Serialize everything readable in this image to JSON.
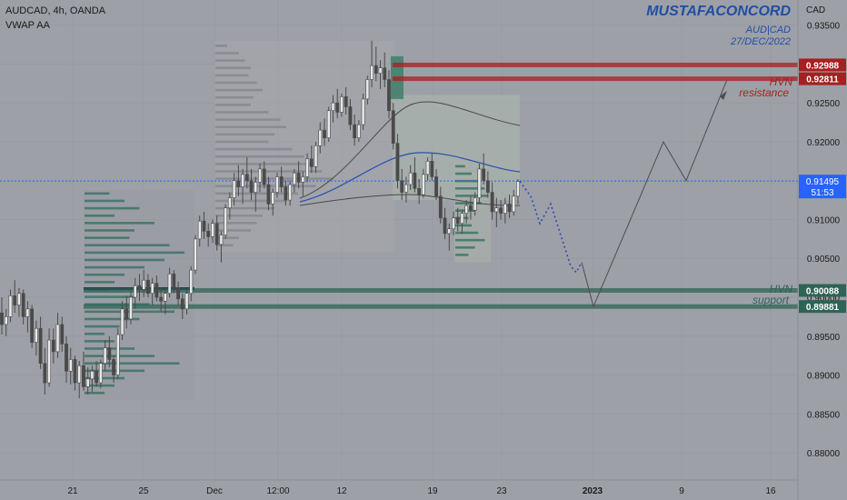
{
  "header": {
    "symbol": "AUDCAD, 4h, OANDA",
    "indicator": "VWAP AA",
    "watermark": "MUSTAFACONCORD",
    "note_pair": "AUD|CAD",
    "note_date": "27/DEC/2022",
    "currency": "CAD"
  },
  "colors": {
    "background": "#9ea0a7",
    "candle": "#4a4a4a",
    "resistance": "#a52020",
    "support": "#2e6455",
    "current_price": "#2962ff",
    "volume_profile": "#2f6e5c",
    "projection": "#4d4d4d",
    "watermark": "#1f4fa3"
  },
  "chart_data": {
    "type": "candlestick",
    "symbol": "AUDCAD",
    "timeframe": "4h",
    "broker": "OANDA",
    "currency": "CAD",
    "ylim": [
      0.8765,
      0.938
    ],
    "y_ticks": [
      "0.93500",
      "0.93000",
      "0.92500",
      "0.92000",
      "0.91500",
      "0.91000",
      "0.90500",
      "0.90000",
      "0.89500",
      "0.89000",
      "0.88500",
      "0.88000"
    ],
    "x_ticks": [
      "21",
      "25",
      "Dec",
      "12:00",
      "12",
      "19",
      "23",
      "2023",
      "9",
      "16"
    ],
    "current_price": "0.91495",
    "countdown": "51:53",
    "levels": [
      {
        "price": "0.92988",
        "type": "resistance"
      },
      {
        "price": "0.92811",
        "type": "resistance",
        "label": "HVN",
        "sublabel": "resistance"
      },
      {
        "price": "0.90088",
        "type": "support",
        "label": "HVN",
        "sublabel": "support"
      },
      {
        "price": "0.89881",
        "type": "support"
      }
    ],
    "candles": [
      [
        0.898,
        0.9,
        0.8952,
        0.8965
      ],
      [
        0.8965,
        0.8985,
        0.895,
        0.8975
      ],
      [
        0.8975,
        0.901,
        0.8968,
        0.9002
      ],
      [
        0.9002,
        0.9022,
        0.898,
        0.899
      ],
      [
        0.899,
        0.9012,
        0.8975,
        0.9005
      ],
      [
        0.9005,
        0.901,
        0.8965,
        0.8975
      ],
      [
        0.8975,
        0.8995,
        0.8955,
        0.8985
      ],
      [
        0.8985,
        0.899,
        0.8935,
        0.8942
      ],
      [
        0.8942,
        0.897,
        0.8925,
        0.896
      ],
      [
        0.896,
        0.8975,
        0.8908,
        0.8915
      ],
      [
        0.8915,
        0.8935,
        0.8875,
        0.889
      ],
      [
        0.889,
        0.896,
        0.8885,
        0.8945
      ],
      [
        0.8945,
        0.896,
        0.8915,
        0.893
      ],
      [
        0.893,
        0.898,
        0.8922,
        0.8965
      ],
      [
        0.8965,
        0.8975,
        0.893,
        0.894
      ],
      [
        0.894,
        0.895,
        0.889,
        0.8905
      ],
      [
        0.8905,
        0.8935,
        0.8888,
        0.892
      ],
      [
        0.892,
        0.8925,
        0.888,
        0.889
      ],
      [
        0.889,
        0.8918,
        0.887,
        0.8912
      ],
      [
        0.8912,
        0.893,
        0.888,
        0.8885
      ],
      [
        0.8885,
        0.891,
        0.8875,
        0.8895
      ],
      [
        0.8895,
        0.8912,
        0.8878,
        0.8905
      ],
      [
        0.8905,
        0.8918,
        0.8885,
        0.889
      ],
      [
        0.889,
        0.892,
        0.8883,
        0.8915
      ],
      [
        0.8915,
        0.8945,
        0.8905,
        0.8935
      ],
      [
        0.8935,
        0.895,
        0.891,
        0.892
      ],
      [
        0.892,
        0.8925,
        0.889,
        0.89
      ],
      [
        0.89,
        0.896,
        0.8895,
        0.8952
      ],
      [
        0.8952,
        0.8995,
        0.8945,
        0.8985
      ],
      [
        0.8985,
        0.9002,
        0.896,
        0.8972
      ],
      [
        0.8972,
        0.901,
        0.8965,
        0.9
      ],
      [
        0.9,
        0.9025,
        0.8985,
        0.9015
      ],
      [
        0.9015,
        0.903,
        0.8995,
        0.901
      ],
      [
        0.901,
        0.9035,
        0.9,
        0.9022
      ],
      [
        0.9022,
        0.903,
        0.9,
        0.9005
      ],
      [
        0.9005,
        0.9025,
        0.899,
        0.9018
      ],
      [
        0.9018,
        0.9028,
        0.8995,
        0.9
      ],
      [
        0.9,
        0.9012,
        0.8982,
        0.8995
      ],
      [
        0.8995,
        0.901,
        0.8978,
        0.9005
      ],
      [
        0.9005,
        0.9038,
        0.9,
        0.903
      ],
      [
        0.903,
        0.9035,
        0.9005,
        0.9012
      ],
      [
        0.9012,
        0.902,
        0.899,
        0.8998
      ],
      [
        0.8998,
        0.9005,
        0.8972,
        0.8985
      ],
      [
        0.8985,
        0.901,
        0.8978,
        0.9005
      ],
      [
        0.9005,
        0.904,
        0.8995,
        0.9035
      ],
      [
        0.9035,
        0.908,
        0.903,
        0.9075
      ],
      [
        0.9075,
        0.9105,
        0.9065,
        0.9098
      ],
      [
        0.9098,
        0.911,
        0.9075,
        0.9085
      ],
      [
        0.9085,
        0.9095,
        0.9065,
        0.9078
      ],
      [
        0.9078,
        0.91,
        0.907,
        0.9095
      ],
      [
        0.9095,
        0.9105,
        0.906,
        0.9068
      ],
      [
        0.9068,
        0.9085,
        0.9045,
        0.908
      ],
      [
        0.908,
        0.912,
        0.9075,
        0.9115
      ],
      [
        0.9115,
        0.9135,
        0.91,
        0.9128
      ],
      [
        0.9128,
        0.916,
        0.9118,
        0.915
      ],
      [
        0.915,
        0.917,
        0.913,
        0.9142
      ],
      [
        0.9142,
        0.9165,
        0.912,
        0.9158
      ],
      [
        0.9158,
        0.918,
        0.914,
        0.915
      ],
      [
        0.915,
        0.9165,
        0.9125,
        0.9135
      ],
      [
        0.9135,
        0.9155,
        0.911,
        0.9148
      ],
      [
        0.9148,
        0.9172,
        0.9135,
        0.9165
      ],
      [
        0.9165,
        0.9175,
        0.914,
        0.9145
      ],
      [
        0.9145,
        0.9155,
        0.9112,
        0.912
      ],
      [
        0.912,
        0.914,
        0.9105,
        0.9135
      ],
      [
        0.9135,
        0.916,
        0.9128,
        0.9155
      ],
      [
        0.9155,
        0.9168,
        0.9135,
        0.9142
      ],
      [
        0.9142,
        0.915,
        0.9118,
        0.9125
      ],
      [
        0.9125,
        0.915,
        0.9118,
        0.9145
      ],
      [
        0.9145,
        0.9165,
        0.9135,
        0.916
      ],
      [
        0.916,
        0.9175,
        0.914,
        0.9148
      ],
      [
        0.9148,
        0.9162,
        0.913,
        0.9155
      ],
      [
        0.9155,
        0.9185,
        0.9148,
        0.9178
      ],
      [
        0.9178,
        0.9195,
        0.916,
        0.9168
      ],
      [
        0.9168,
        0.92,
        0.916,
        0.9195
      ],
      [
        0.9195,
        0.9225,
        0.9185,
        0.9215
      ],
      [
        0.9215,
        0.923,
        0.9195,
        0.9205
      ],
      [
        0.9205,
        0.9245,
        0.92,
        0.924
      ],
      [
        0.924,
        0.926,
        0.9225,
        0.925
      ],
      [
        0.925,
        0.9268,
        0.923,
        0.9238
      ],
      [
        0.9238,
        0.9262,
        0.9232,
        0.9258
      ],
      [
        0.9258,
        0.927,
        0.9235,
        0.9245
      ],
      [
        0.9245,
        0.9255,
        0.9215,
        0.9222
      ],
      [
        0.9222,
        0.9235,
        0.9195,
        0.9205
      ],
      [
        0.9205,
        0.9228,
        0.92,
        0.9222
      ],
      [
        0.9222,
        0.9262,
        0.9215,
        0.9255
      ],
      [
        0.9255,
        0.9285,
        0.9248,
        0.928
      ],
      [
        0.928,
        0.933,
        0.927,
        0.9298
      ],
      [
        0.9298,
        0.9322,
        0.9278,
        0.9288
      ],
      [
        0.9288,
        0.9305,
        0.9268,
        0.9295
      ],
      [
        0.9295,
        0.9315,
        0.927,
        0.928
      ],
      [
        0.928,
        0.9292,
        0.923,
        0.924
      ],
      [
        0.924,
        0.925,
        0.919,
        0.9198
      ],
      [
        0.9198,
        0.921,
        0.914,
        0.915
      ],
      [
        0.915,
        0.9165,
        0.9125,
        0.9135
      ],
      [
        0.9135,
        0.9155,
        0.9122,
        0.9145
      ],
      [
        0.9145,
        0.917,
        0.9138,
        0.916
      ],
      [
        0.916,
        0.918,
        0.9135,
        0.914
      ],
      [
        0.914,
        0.9152,
        0.912,
        0.9132
      ],
      [
        0.9132,
        0.9165,
        0.9128,
        0.9158
      ],
      [
        0.9158,
        0.918,
        0.915,
        0.9175
      ],
      [
        0.9175,
        0.9185,
        0.915,
        0.9155
      ],
      [
        0.9155,
        0.9165,
        0.9125,
        0.913
      ],
      [
        0.913,
        0.9142,
        0.9095,
        0.9102
      ],
      [
        0.9102,
        0.9115,
        0.9075,
        0.9082
      ],
      [
        0.9082,
        0.9095,
        0.906,
        0.9088
      ],
      [
        0.9088,
        0.911,
        0.908,
        0.9102
      ],
      [
        0.9102,
        0.9115,
        0.9085,
        0.9095
      ],
      [
        0.9095,
        0.9112,
        0.9082,
        0.9108
      ],
      [
        0.9108,
        0.9125,
        0.9095,
        0.9118
      ],
      [
        0.9118,
        0.913,
        0.91,
        0.9112
      ],
      [
        0.9112,
        0.9135,
        0.9105,
        0.9128
      ],
      [
        0.9128,
        0.9172,
        0.912,
        0.9165
      ],
      [
        0.9165,
        0.9185,
        0.9145,
        0.915
      ],
      [
        0.915,
        0.9162,
        0.9128,
        0.9135
      ],
      [
        0.9135,
        0.9148,
        0.91,
        0.911
      ],
      [
        0.911,
        0.9128,
        0.909,
        0.9115
      ],
      [
        0.9115,
        0.9125,
        0.91,
        0.9108
      ],
      [
        0.9108,
        0.9128,
        0.9095,
        0.912
      ],
      [
        0.912,
        0.9132,
        0.9102,
        0.911
      ],
      [
        0.911,
        0.9138,
        0.9105,
        0.913
      ],
      [
        0.913,
        0.9152,
        0.912,
        0.9149
      ]
    ],
    "projection": [
      [
        0.9149,
        0.913
      ],
      [
        0.913,
        0.9095
      ],
      [
        0.9095,
        0.912
      ],
      [
        0.912,
        0.904
      ],
      [
        0.904,
        0.9032
      ],
      [
        0.9032,
        0.9045
      ],
      [
        0.9045,
        0.8988
      ],
      [
        0.8988,
        0.92
      ],
      [
        0.92,
        0.915
      ],
      [
        0.915,
        0.928
      ]
    ],
    "annotations": [
      "HVN",
      "resistance",
      "HVN",
      "support"
    ]
  }
}
